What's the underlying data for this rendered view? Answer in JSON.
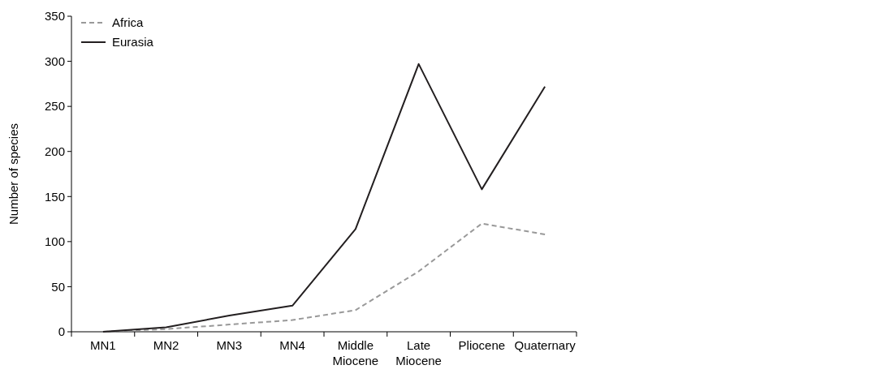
{
  "chart_data": {
    "type": "line",
    "ylabel": "Number of species",
    "categories": [
      "MN1",
      "MN2",
      "MN3",
      "MN4",
      "Middle\nMiocene",
      "Late\nMiocene",
      "Pliocene",
      "Quaternary"
    ],
    "series": [
      {
        "name": "Africa",
        "color": "#999999",
        "line_style": "dashed",
        "values": [
          0,
          3,
          8,
          13,
          24,
          67,
          120,
          108
        ]
      },
      {
        "name": "Eurasia",
        "color": "#231f20",
        "line_style": "solid",
        "values": [
          0,
          5,
          18,
          29,
          114,
          297,
          158,
          272
        ]
      }
    ],
    "ylim": [
      0,
      350
    ],
    "yticks": [
      0,
      50,
      100,
      150,
      200,
      250,
      300,
      350
    ],
    "grid": false,
    "legend": "top left",
    "marker": "none"
  }
}
